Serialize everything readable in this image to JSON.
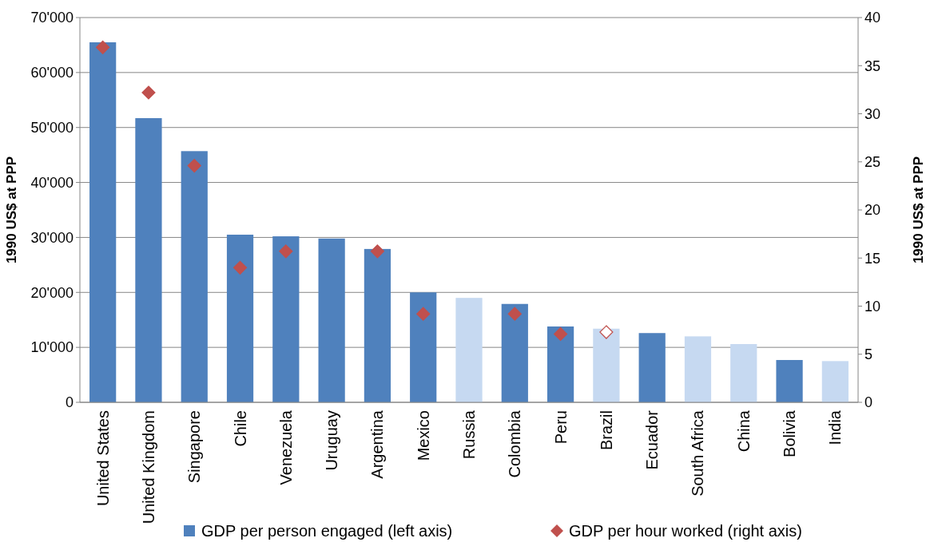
{
  "chart_data": {
    "type": "bar",
    "categories": [
      "United States",
      "United Kingdom",
      "Singapore",
      "Chile",
      "Venezuela",
      "Uruguay",
      "Argentina",
      "Mexico",
      "Russia",
      "Colombia",
      "Peru",
      "Brazil",
      "Ecuador",
      "South Africa",
      "China",
      "Bolivia",
      "India"
    ],
    "ylabel": "1990 US$  at PPP",
    "y2label": "1990 US$  at PPP",
    "ylim": [
      0,
      70000
    ],
    "yticks": [
      0,
      {
        "value": 10000,
        "label": "10'000"
      },
      {
        "value": 20000,
        "label": "20'000"
      },
      {
        "value": 30000,
        "label": "30'000"
      },
      {
        "value": 40000,
        "label": "40'000"
      },
      {
        "value": 50000,
        "label": "50'000"
      },
      {
        "value": 60000,
        "label": "60'000"
      },
      {
        "value": 70000,
        "label": "70'000"
      }
    ],
    "y2lim": [
      0,
      40
    ],
    "y2ticks": [
      0,
      5,
      10,
      15,
      20,
      25,
      30,
      35,
      40
    ],
    "grid": "y",
    "legend": "bottom",
    "series": [
      {
        "name": "GDP per person engaged (left axis)",
        "type": "bar",
        "color": "#4f81bd",
        "colors": [
          "#4f81bd",
          "#4f81bd",
          "#4f81bd",
          "#4f81bd",
          "#4f81bd",
          "#4f81bd",
          "#4f81bd",
          "#4f81bd",
          "#c6d9f1",
          "#4f81bd",
          "#4f81bd",
          "#c6d9f1",
          "#4f81bd",
          "#c6d9f1",
          "#c6d9f1",
          "#4f81bd",
          "#c6d9f1"
        ],
        "values": [
          65500,
          51700,
          45700,
          30500,
          30200,
          29800,
          27900,
          20000,
          19000,
          17900,
          13800,
          13400,
          12600,
          12000,
          10600,
          7700,
          7500
        ]
      },
      {
        "name": "GDP per hour worked (right axis)",
        "type": "scatter",
        "axis": "y2",
        "marker": "diamond",
        "color": "#c0504d",
        "colors": [
          "#c0504d",
          "#c0504d",
          "#c0504d",
          "#c0504d",
          "#c0504d",
          null,
          "#c0504d",
          "#c0504d",
          null,
          "#c0504d",
          "#c0504d",
          "#ffffff",
          null,
          null,
          null,
          null,
          null
        ],
        "values": [
          36.9,
          32.2,
          24.6,
          14.0,
          15.7,
          null,
          15.7,
          9.2,
          null,
          9.2,
          7.1,
          7.3,
          null,
          null,
          null,
          null,
          null
        ]
      }
    ]
  }
}
